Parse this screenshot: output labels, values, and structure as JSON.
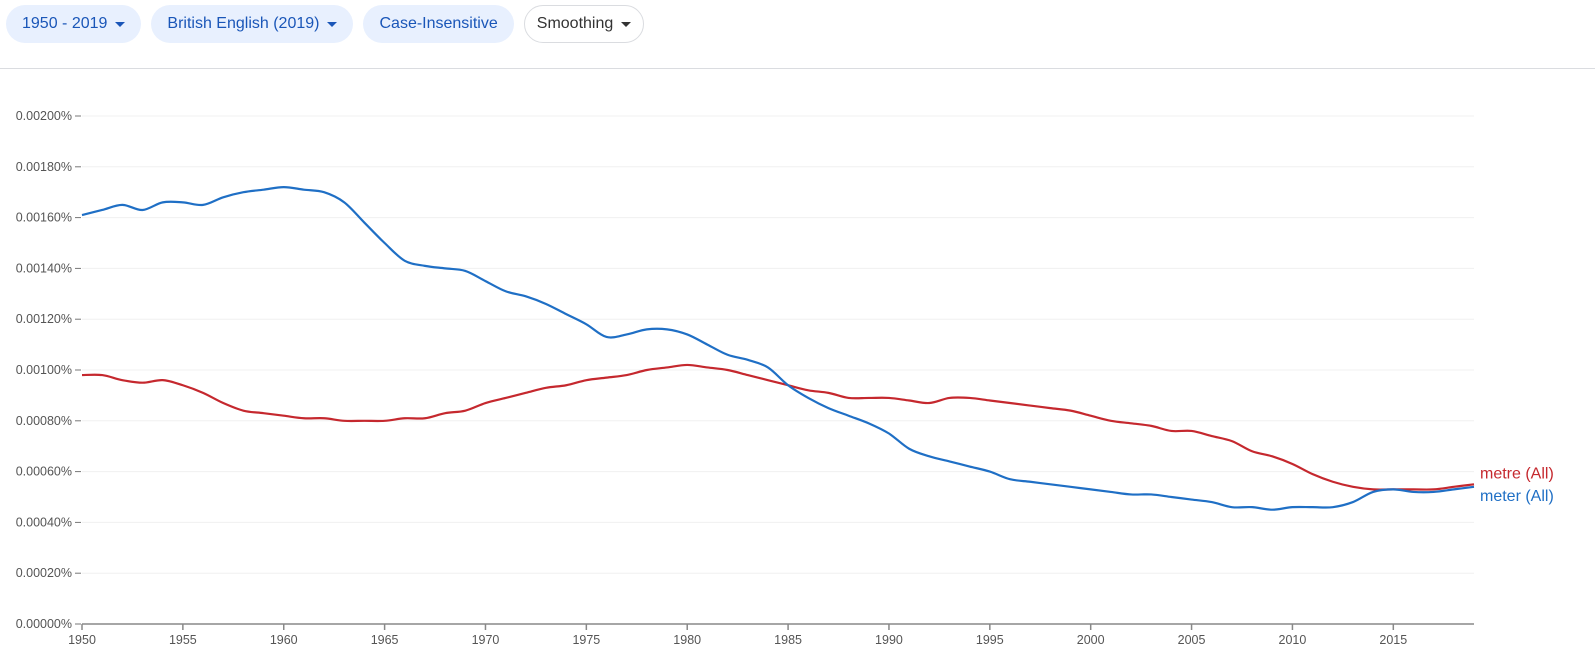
{
  "toolbar": {
    "year_range": "1950 - 2019",
    "corpus": "British English (2019)",
    "case": "Case-Insensitive",
    "smoothing": "Smoothing"
  },
  "chart_data": {
    "type": "line",
    "xlim": [
      1950,
      2019
    ],
    "ylim": [
      0,
      0.002
    ],
    "x_ticks": [
      "1950",
      "1955",
      "1960",
      "1965",
      "1970",
      "1975",
      "1980",
      "1985",
      "1990",
      "1995",
      "2000",
      "2005",
      "2010",
      "2015"
    ],
    "y_ticks": [
      "0.00000%",
      "0.00020%",
      "0.00040%",
      "0.00060%",
      "0.00080%",
      "0.00100%",
      "0.00120%",
      "0.00140%",
      "0.00160%",
      "0.00180%",
      "0.00200%"
    ],
    "grid": true,
    "legend_placement": "right, inline at line end",
    "x_start": 1950,
    "series": [
      {
        "name": "metre (All)",
        "color": "#c5282e",
        "values": [
          0.00098,
          0.00098,
          0.00096,
          0.00095,
          0.00096,
          0.00094,
          0.00091,
          0.00087,
          0.00084,
          0.00083,
          0.00082,
          0.00081,
          0.00081,
          0.0008,
          0.0008,
          0.0008,
          0.00081,
          0.00081,
          0.00083,
          0.00084,
          0.00087,
          0.00089,
          0.00091,
          0.00093,
          0.00094,
          0.00096,
          0.00097,
          0.00098,
          0.001,
          0.00101,
          0.00102,
          0.00101,
          0.001,
          0.00098,
          0.00096,
          0.00094,
          0.00092,
          0.00091,
          0.00089,
          0.00089,
          0.00089,
          0.00088,
          0.00087,
          0.00089,
          0.00089,
          0.00088,
          0.00087,
          0.00086,
          0.00085,
          0.00084,
          0.00082,
          0.0008,
          0.00079,
          0.00078,
          0.00076,
          0.00076,
          0.00074,
          0.00072,
          0.00068,
          0.00066,
          0.00063,
          0.00059,
          0.00056,
          0.00054,
          0.00053,
          0.00053,
          0.00053,
          0.00053,
          0.00054,
          0.00055
        ]
      },
      {
        "name": "meter (All)",
        "color": "#1f6fc5",
        "values": [
          0.00161,
          0.00163,
          0.00165,
          0.00163,
          0.00166,
          0.00166,
          0.00165,
          0.00168,
          0.0017,
          0.00171,
          0.00172,
          0.00171,
          0.0017,
          0.00166,
          0.00158,
          0.0015,
          0.00143,
          0.00141,
          0.0014,
          0.00139,
          0.00135,
          0.00131,
          0.00129,
          0.00126,
          0.00122,
          0.00118,
          0.00113,
          0.00114,
          0.00116,
          0.00116,
          0.00114,
          0.0011,
          0.00106,
          0.00104,
          0.00101,
          0.00094,
          0.00089,
          0.00085,
          0.00082,
          0.00079,
          0.00075,
          0.00069,
          0.00066,
          0.00064,
          0.00062,
          0.0006,
          0.00057,
          0.00056,
          0.00055,
          0.00054,
          0.00053,
          0.00052,
          0.00051,
          0.00051,
          0.0005,
          0.00049,
          0.00048,
          0.00046,
          0.00046,
          0.00045,
          0.00046,
          0.00046,
          0.00046,
          0.00048,
          0.00052,
          0.00053,
          0.00052,
          0.00052,
          0.00053,
          0.00054
        ]
      }
    ]
  }
}
